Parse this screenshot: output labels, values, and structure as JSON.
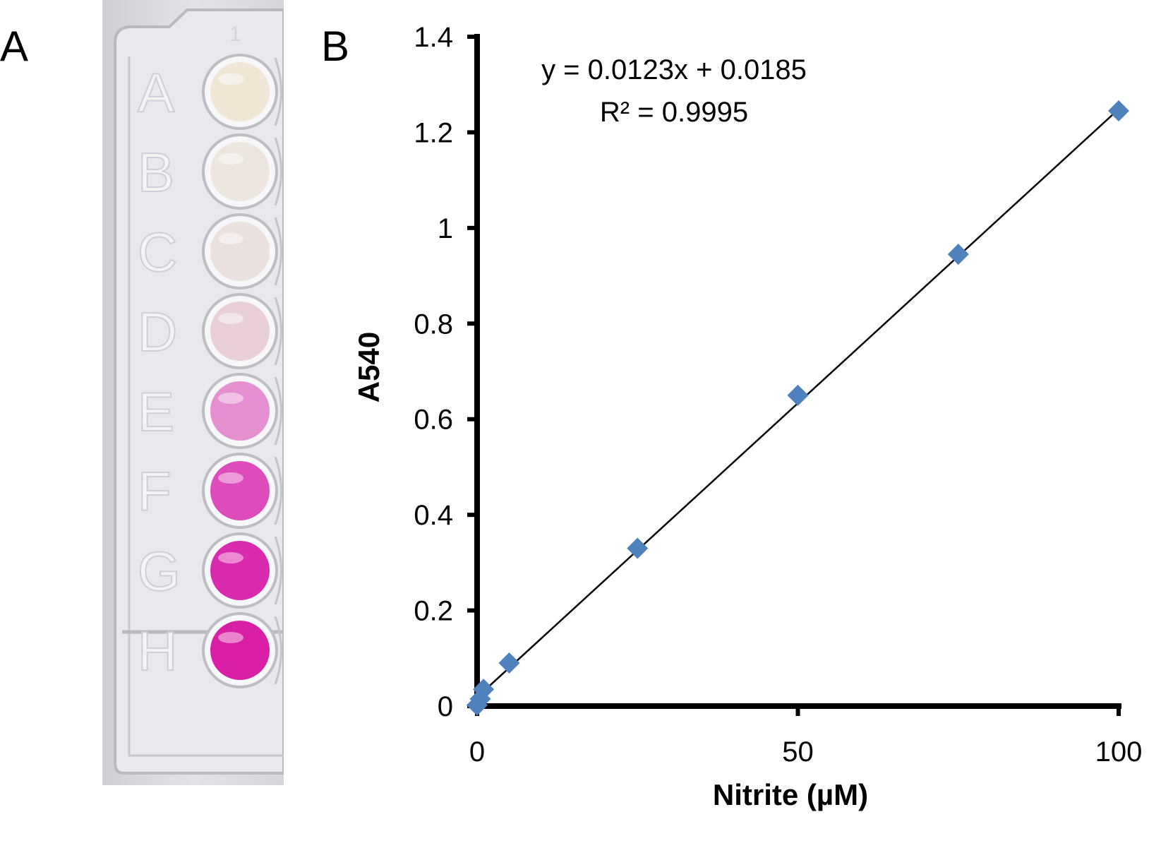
{
  "panels": {
    "a_label": "A",
    "b_label": "B"
  },
  "plate": {
    "row_labels": [
      "A",
      "B",
      "C",
      "D",
      "E",
      "F",
      "G",
      "H"
    ],
    "column_label": "1",
    "well_colors": [
      "#efe6d6",
      "#ece6de",
      "#ebe2e0",
      "#e9cfd6",
      "#e58fd1",
      "#de4cbb",
      "#da2aad",
      "#d91fa5"
    ]
  },
  "chart_data": {
    "type": "scatter",
    "x": [
      0,
      0.5,
      1,
      5,
      25,
      50,
      75,
      100
    ],
    "y": [
      0.002,
      0.015,
      0.035,
      0.09,
      0.33,
      0.65,
      0.945,
      1.245
    ],
    "trendline": {
      "slope": 0.0123,
      "intercept": 0.0185
    },
    "equation": "y = 0.0123x + 0.0185",
    "r_squared": "R² = 0.9995",
    "xlabel": "Nitrite (µM)",
    "ylabel": "A540",
    "xlim": [
      0,
      100
    ],
    "ylim": [
      0,
      1.4
    ],
    "xticks": [
      0,
      50,
      100
    ],
    "yticks": [
      0,
      0.2,
      0.4,
      0.6,
      0.8,
      1,
      1.2,
      1.4
    ],
    "xtick_labels": [
      "0",
      "50",
      "100"
    ],
    "ytick_labels": [
      "0",
      "0.2",
      "0.4",
      "0.6",
      "0.8",
      "1",
      "1.2",
      "1.4"
    ],
    "marker": "diamond",
    "marker_color": "#4f81bd",
    "trendline_color": "#000000",
    "grid": false
  }
}
